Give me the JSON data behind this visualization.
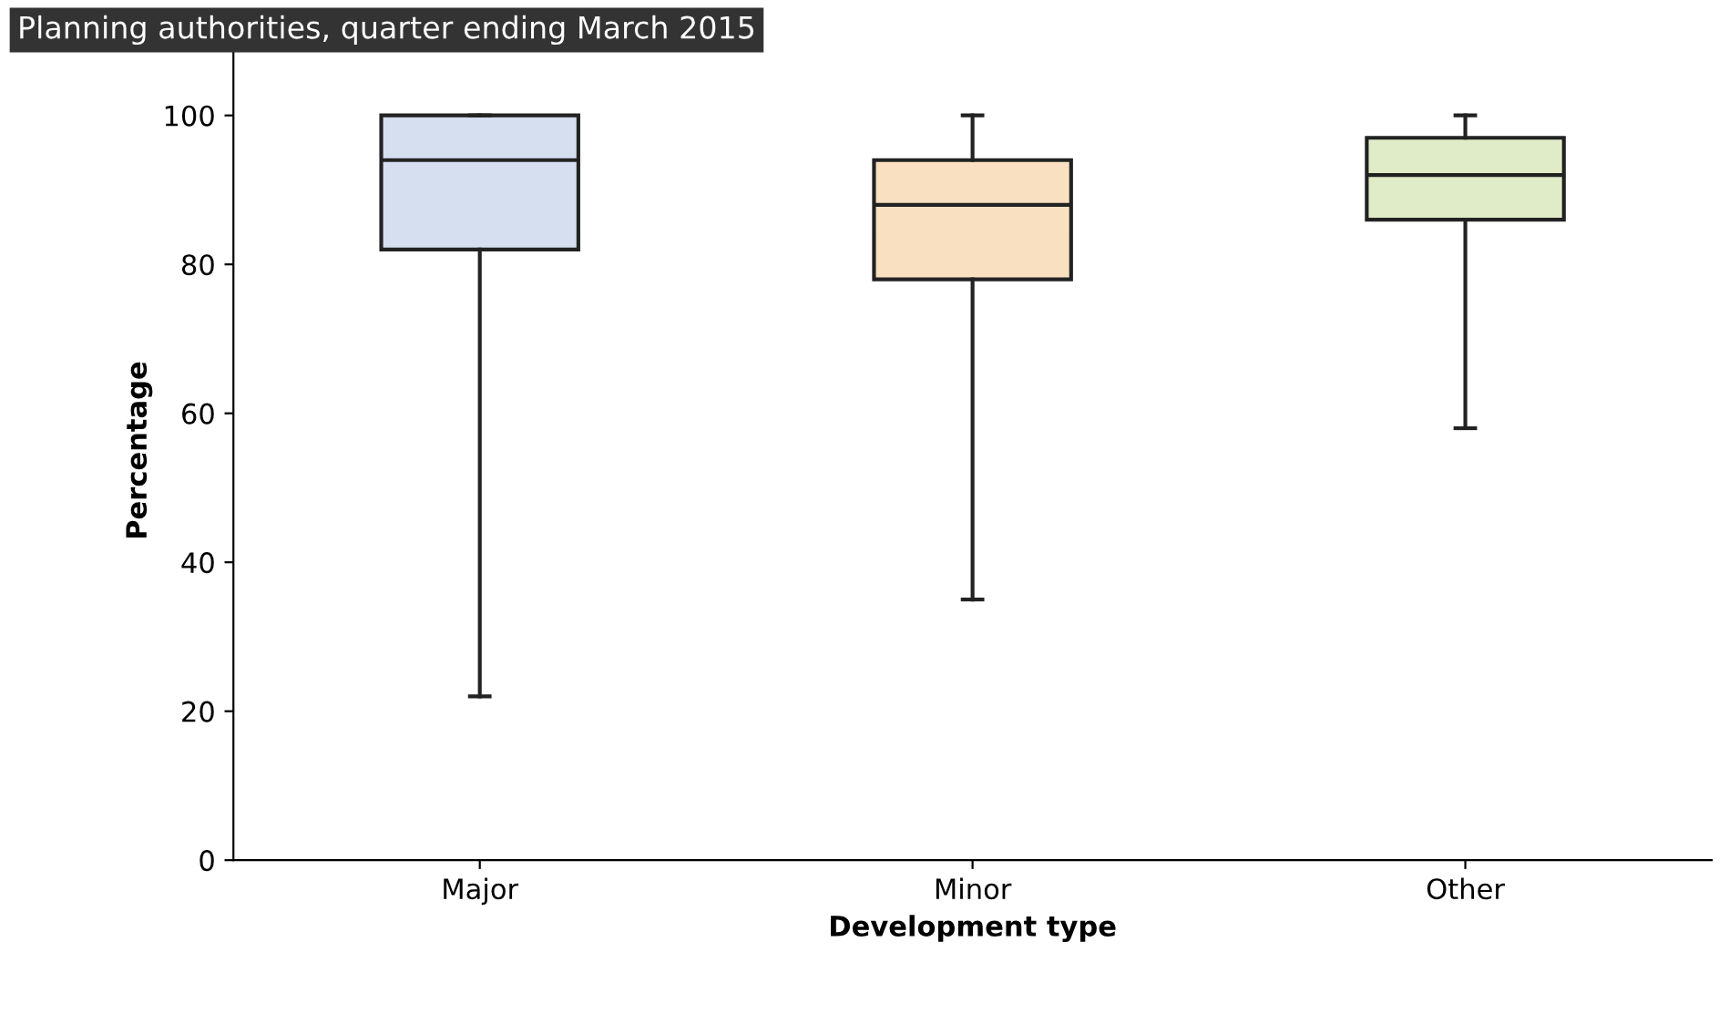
{
  "chart_data": {
    "type": "box",
    "title": "Planning authorities, quarter ending March 2015",
    "xlabel": "Development type",
    "ylabel": "Percentage",
    "categories": [
      "Major",
      "Minor",
      "Other"
    ],
    "colors": [
      "#d5dff0",
      "#f8e0c0",
      "#e0ecc8"
    ],
    "boxes": [
      {
        "low": 22,
        "q1": 82,
        "median": 94,
        "q3": 100,
        "high": 100
      },
      {
        "low": 35,
        "q1": 78,
        "median": 88,
        "q3": 94,
        "high": 100
      },
      {
        "low": 58,
        "q1": 86,
        "median": 92,
        "q3": 97,
        "high": 100
      }
    ],
    "ylim": [
      0,
      110
    ],
    "yticks": [
      0,
      20,
      40,
      60,
      80,
      100
    ],
    "grid": false,
    "legend": false
  }
}
